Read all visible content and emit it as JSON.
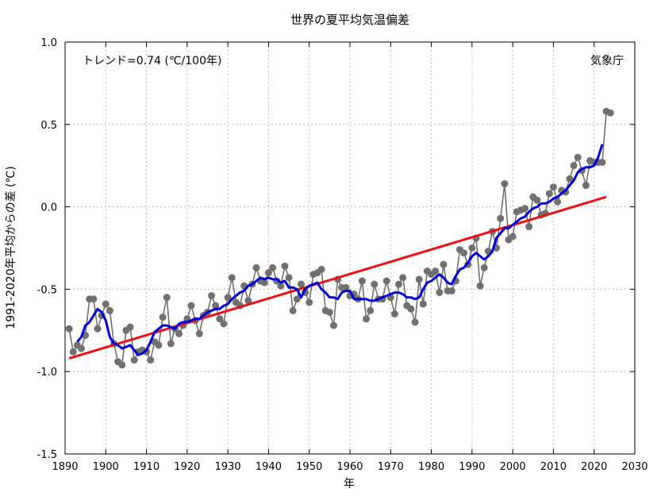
{
  "chart_data": {
    "type": "line",
    "title": "世界の夏平均気温偏差",
    "xlabel": "年",
    "ylabel": "1991-2020年平均からの差 (℃)",
    "annotation": "トレンド=0.74 (℃/100年)",
    "source_label": "気象庁",
    "xlim": [
      1890,
      2030
    ],
    "ylim": [
      -1.5,
      1.0
    ],
    "xticks": [
      1890,
      1900,
      1910,
      1920,
      1930,
      1940,
      1950,
      1960,
      1970,
      1980,
      1990,
      2000,
      2010,
      2020,
      2030
    ],
    "yticks": [
      1.0,
      0.5,
      0.0,
      -0.5,
      -1.0,
      -1.5
    ],
    "ytick_labels": [
      "1.0",
      "0.5",
      "0.0",
      "-0.5",
      "-1.0",
      "-1.5"
    ],
    "grid": true,
    "colors": {
      "annual": "#707070",
      "moving_average": "#0000dd",
      "trend": "#ee1111",
      "grid": "#bbbbbb"
    },
    "series": [
      {
        "x": [
          1891,
          1892,
          1893,
          1894,
          1895,
          1896,
          1897,
          1898,
          1899,
          1900,
          1901,
          1902,
          1903,
          1904,
          1905,
          1906,
          1907,
          1908,
          1909,
          1910,
          1911,
          1912,
          1913,
          1914,
          1915,
          1916,
          1917,
          1918,
          1919,
          1920,
          1921,
          1922,
          1923,
          1924,
          1925,
          1926,
          1927,
          1928,
          1929,
          1930,
          1931,
          1932,
          1933,
          1934,
          1935,
          1936,
          1937,
          1938,
          1939,
          1940,
          1941,
          1942,
          1943,
          1944,
          1945,
          1946,
          1947,
          1948,
          1949,
          1950,
          1951,
          1952,
          1953,
          1954,
          1955,
          1956,
          1957,
          1958,
          1959,
          1960,
          1961,
          1962,
          1963,
          1964,
          1965,
          1966,
          1967,
          1968,
          1969,
          1970,
          1971,
          1972,
          1973,
          1974,
          1975,
          1976,
          1977,
          1978,
          1979,
          1980,
          1981,
          1982,
          1983,
          1984,
          1985,
          1986,
          1987,
          1988,
          1989,
          1990,
          1991,
          1992,
          1993,
          1994,
          1995,
          1996,
          1997,
          1998,
          1999,
          2000,
          2001,
          2002,
          2003,
          2004,
          2005,
          2006,
          2007,
          2008,
          2009,
          2010,
          2011,
          2012,
          2013,
          2014,
          2015,
          2016,
          2017,
          2018,
          2019,
          2020,
          2021,
          2022,
          2023,
          2024
        ],
        "values": [
          -0.74,
          -0.88,
          -0.84,
          -0.86,
          -0.78,
          -0.56,
          -0.56,
          -0.74,
          -0.66,
          -0.59,
          -0.63,
          -0.83,
          -0.94,
          -0.96,
          -0.75,
          -0.73,
          -0.93,
          -0.88,
          -0.87,
          -0.88,
          -0.93,
          -0.82,
          -0.84,
          -0.67,
          -0.55,
          -0.83,
          -0.74,
          -0.77,
          -0.72,
          -0.68,
          -0.6,
          -0.69,
          -0.77,
          -0.66,
          -0.64,
          -0.54,
          -0.6,
          -0.68,
          -0.71,
          -0.55,
          -0.43,
          -0.58,
          -0.6,
          -0.48,
          -0.57,
          -0.47,
          -0.37,
          -0.45,
          -0.46,
          -0.4,
          -0.37,
          -0.45,
          -0.48,
          -0.36,
          -0.43,
          -0.63,
          -0.56,
          -0.47,
          -0.52,
          -0.58,
          -0.41,
          -0.4,
          -0.38,
          -0.63,
          -0.64,
          -0.72,
          -0.44,
          -0.49,
          -0.49,
          -0.54,
          -0.53,
          -0.56,
          -0.45,
          -0.68,
          -0.63,
          -0.47,
          -0.56,
          -0.56,
          -0.45,
          -0.55,
          -0.65,
          -0.47,
          -0.43,
          -0.6,
          -0.62,
          -0.7,
          -0.44,
          -0.59,
          -0.39,
          -0.41,
          -0.39,
          -0.52,
          -0.35,
          -0.51,
          -0.51,
          -0.45,
          -0.26,
          -0.28,
          -0.35,
          -0.25,
          -0.19,
          -0.48,
          -0.37,
          -0.27,
          -0.15,
          -0.25,
          -0.07,
          0.14,
          -0.2,
          -0.18,
          -0.03,
          -0.02,
          -0.01,
          -0.12,
          0.06,
          0.04,
          -0.05,
          -0.04,
          0.08,
          0.12,
          0.03,
          0.1,
          0.09,
          0.17,
          0.25,
          0.3,
          0.22,
          0.13,
          0.28,
          0.27,
          0.27,
          0.27,
          0.58,
          0.57
        ]
      },
      {
        "x": [
          1893,
          1894,
          1895,
          1896,
          1897,
          1898,
          1899,
          1900,
          1901,
          1902,
          1903,
          1904,
          1905,
          1906,
          1907,
          1908,
          1909,
          1910,
          1911,
          1912,
          1913,
          1914,
          1915,
          1916,
          1917,
          1918,
          1919,
          1920,
          1921,
          1922,
          1923,
          1924,
          1925,
          1926,
          1927,
          1928,
          1929,
          1930,
          1931,
          1932,
          1933,
          1934,
          1935,
          1936,
          1937,
          1938,
          1939,
          1940,
          1941,
          1942,
          1943,
          1944,
          1945,
          1946,
          1947,
          1948,
          1949,
          1950,
          1951,
          1952,
          1953,
          1954,
          1955,
          1956,
          1957,
          1958,
          1959,
          1960,
          1961,
          1962,
          1963,
          1964,
          1965,
          1966,
          1967,
          1968,
          1969,
          1970,
          1971,
          1972,
          1973,
          1974,
          1975,
          1976,
          1977,
          1978,
          1979,
          1980,
          1981,
          1982,
          1983,
          1984,
          1985,
          1986,
          1987,
          1988,
          1989,
          1990,
          1991,
          1992,
          1993,
          1994,
          1995,
          1996,
          1997,
          1998,
          1999,
          2000,
          2001,
          2002,
          2003,
          2004,
          2005,
          2006,
          2007,
          2008,
          2009,
          2010,
          2011,
          2012,
          2013,
          2014,
          2015,
          2016,
          2017,
          2018,
          2019,
          2020,
          2021,
          2022
        ],
        "values": [
          -0.82,
          -0.79,
          -0.72,
          -0.7,
          -0.66,
          -0.62,
          -0.64,
          -0.69,
          -0.79,
          -0.83,
          -0.84,
          -0.86,
          -0.85,
          -0.84,
          -0.87,
          -0.9,
          -0.89,
          -0.87,
          -0.82,
          -0.76,
          -0.74,
          -0.72,
          -0.72,
          -0.73,
          -0.74,
          -0.71,
          -0.7,
          -0.7,
          -0.69,
          -0.68,
          -0.68,
          -0.66,
          -0.64,
          -0.63,
          -0.62,
          -0.62,
          -0.6,
          -0.59,
          -0.56,
          -0.54,
          -0.52,
          -0.51,
          -0.48,
          -0.47,
          -0.45,
          -0.43,
          -0.44,
          -0.43,
          -0.44,
          -0.44,
          -0.46,
          -0.45,
          -0.49,
          -0.49,
          -0.5,
          -0.55,
          -0.5,
          -0.48,
          -0.47,
          -0.46,
          -0.5,
          -0.52,
          -0.55,
          -0.55,
          -0.56,
          -0.52,
          -0.51,
          -0.51,
          -0.56,
          -0.56,
          -0.56,
          -0.56,
          -0.57,
          -0.57,
          -0.56,
          -0.55,
          -0.54,
          -0.53,
          -0.52,
          -0.52,
          -0.53,
          -0.55,
          -0.55,
          -0.56,
          -0.55,
          -0.5,
          -0.46,
          -0.45,
          -0.43,
          -0.41,
          -0.43,
          -0.46,
          -0.47,
          -0.42,
          -0.38,
          -0.37,
          -0.34,
          -0.3,
          -0.28,
          -0.3,
          -0.32,
          -0.3,
          -0.27,
          -0.19,
          -0.16,
          -0.13,
          -0.13,
          -0.11,
          -0.09,
          -0.07,
          -0.06,
          -0.03,
          -0.01,
          0.0,
          0.02,
          0.02,
          0.03,
          0.05,
          0.06,
          0.08,
          0.1,
          0.13,
          0.16,
          0.21,
          0.23,
          0.24,
          0.24,
          0.25,
          0.3,
          0.38
        ]
      },
      {
        "x": [
          1891,
          2023
        ],
        "values": [
          -0.92,
          0.06
        ]
      }
    ]
  }
}
